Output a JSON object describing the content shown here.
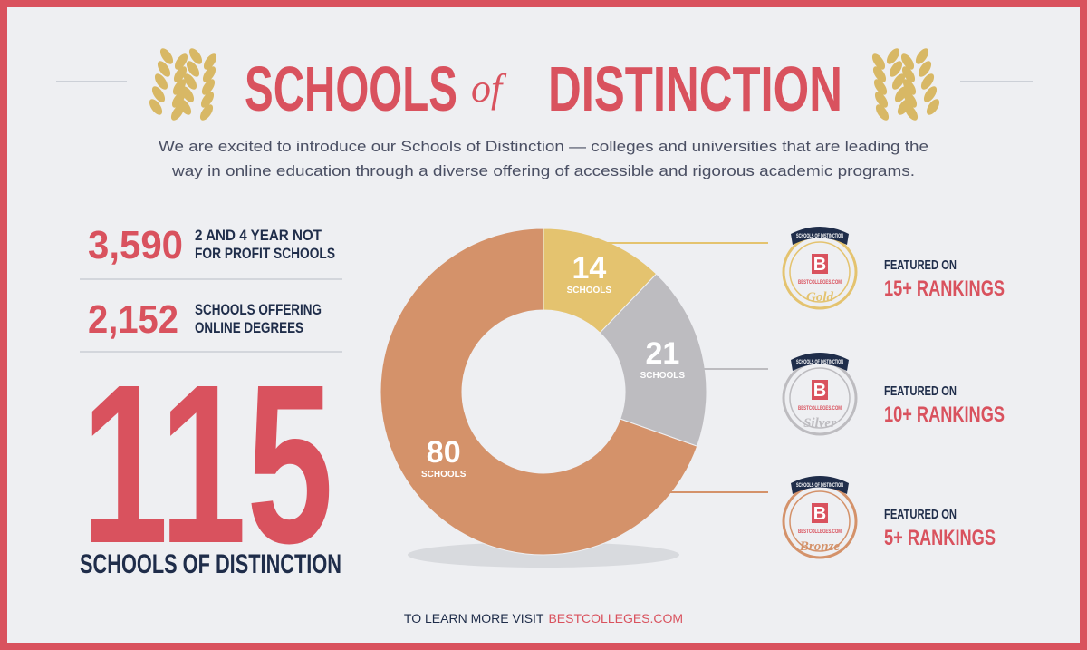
{
  "header": {
    "title_left": "SCHOOLS",
    "title_mid": "of",
    "title_right": "DISTINCTION",
    "intro": [
      "We are excited to introduce our Schools of Distinction — colleges and universities that are leading the",
      "way in online education through a diverse offering of accessible and rigorous academic programs."
    ]
  },
  "stats": [
    {
      "value": "3,590",
      "label": [
        "2 AND 4 YEAR NOT",
        "FOR PROFIT SCHOOLS"
      ]
    },
    {
      "value": "2,152",
      "label": [
        "SCHOOLS OFFERING",
        "ONLINE DEGREES"
      ]
    }
  ],
  "total": {
    "value": "115",
    "label": "SCHOOLS OF DISTINCTION"
  },
  "chart_data": {
    "type": "donut",
    "categories": [
      "Gold",
      "Silver",
      "Bronze"
    ],
    "values": [
      14,
      21,
      80
    ],
    "unit_label": "SCHOOLS",
    "colors": [
      "#e4c36f",
      "#bdbcc0",
      "#d4926a"
    ]
  },
  "badges": {
    "ribbon": "SCHOOLS OF DISTINCTION",
    "letter": "B",
    "site": "BESTCOLLEGES.COM",
    "featured": "FEATURED ON",
    "rankings": [
      "15+ RANKINGS",
      "10+ RANKINGS",
      "5+ RANKINGS"
    ]
  },
  "footer": {
    "text": "TO LEARN MORE VISIT",
    "link": "BESTCOLLEGES.COM"
  }
}
